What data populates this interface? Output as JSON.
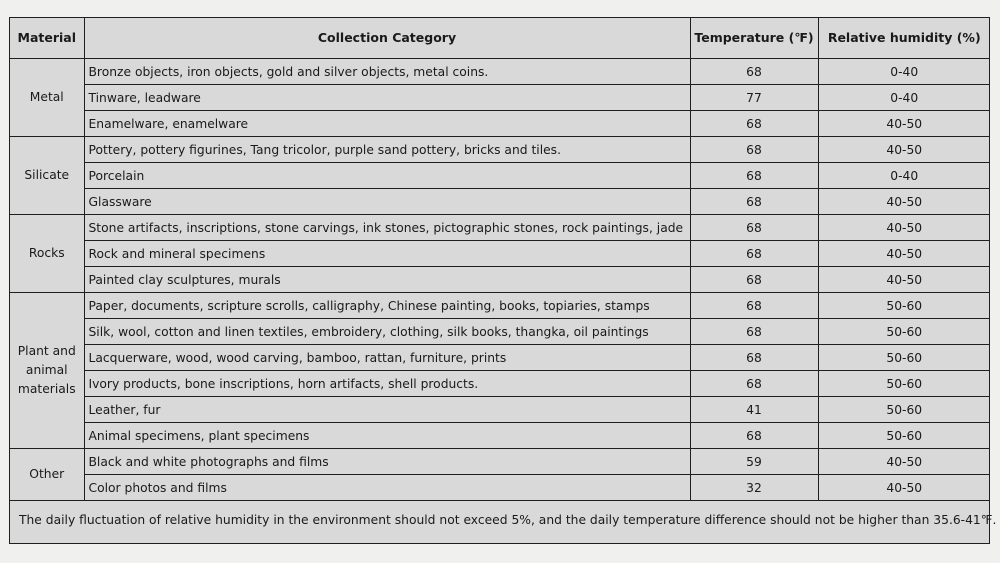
{
  "table": {
    "headers": {
      "material": "Material",
      "category": "Collection Category",
      "temperature": "Temperature (℉)",
      "humidity": "Relative humidity (%)"
    },
    "groups": [
      {
        "material": "Metal",
        "rows": [
          {
            "category": "Bronze objects, iron objects, gold and silver objects, metal coins.",
            "temperature": "68",
            "humidity": "0-40"
          },
          {
            "category": "Tinware, leadware",
            "temperature": "77",
            "humidity": "0-40"
          },
          {
            "category": "Enamelware, enamelware",
            "temperature": "68",
            "humidity": "40-50"
          }
        ]
      },
      {
        "material": "Silicate",
        "rows": [
          {
            "category": "Pottery, pottery figurines, Tang tricolor, purple sand pottery, bricks and tiles.",
            "temperature": "68",
            "humidity": "40-50"
          },
          {
            "category": "Porcelain",
            "temperature": "68",
            "humidity": "0-40"
          },
          {
            "category": "Glassware",
            "temperature": "68",
            "humidity": "40-50"
          }
        ]
      },
      {
        "material": "Rocks",
        "rows": [
          {
            "category": "Stone artifacts, inscriptions, stone carvings, ink stones, pictographic stones, rock paintings, jade",
            "temperature": "68",
            "humidity": "40-50"
          },
          {
            "category": "Rock and mineral specimens",
            "temperature": "68",
            "humidity": "40-50"
          },
          {
            "category": "Painted clay sculptures, murals",
            "temperature": "68",
            "humidity": "40-50"
          }
        ]
      },
      {
        "material": "Plant and animal materials",
        "rows": [
          {
            "category": "Paper, documents, scripture scrolls, calligraphy, Chinese painting, books, topiaries, stamps",
            "temperature": "68",
            "humidity": "50-60"
          },
          {
            "category": "Silk, wool, cotton and linen textiles, embroidery, clothing, silk books, thangka, oil paintings",
            "temperature": "68",
            "humidity": "50-60"
          },
          {
            "category": "Lacquerware, wood, wood carving, bamboo, rattan, furniture, prints",
            "temperature": "68",
            "humidity": "50-60"
          },
          {
            "category": "Ivory products, bone inscriptions, horn artifacts, shell products.",
            "temperature": "68",
            "humidity": "50-60"
          },
          {
            "category": "Leather, fur",
            "temperature": "41",
            "humidity": "50-60"
          },
          {
            "category": "Animal specimens, plant specimens",
            "temperature": "68",
            "humidity": "50-60"
          }
        ]
      },
      {
        "material": "Other",
        "rows": [
          {
            "category": "Black and white photographs and films",
            "temperature": "59",
            "humidity": "40-50"
          },
          {
            "category": "Color photos and films",
            "temperature": "32",
            "humidity": "40-50"
          }
        ]
      }
    ],
    "note": "The daily fluctuation of relative humidity in the environment should not exceed 5%, and the daily temperature difference should not be higher than 35.6-41℉."
  }
}
